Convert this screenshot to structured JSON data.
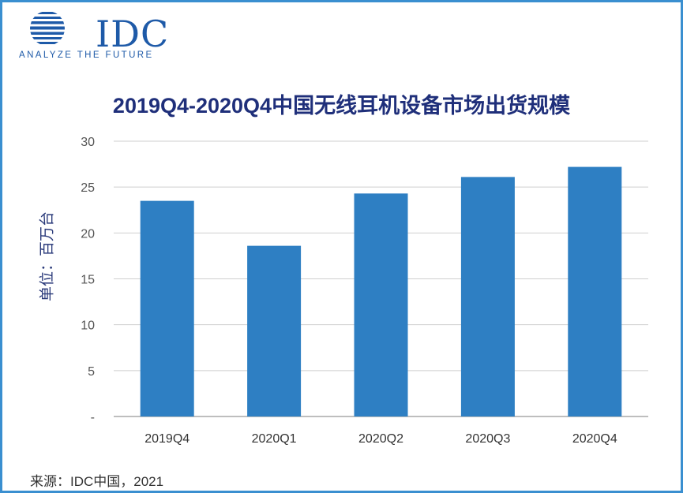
{
  "logo": {
    "text": "IDC",
    "tagline": "ANALYZE THE FUTURE"
  },
  "source": "来源：IDC中国，2021",
  "colors": {
    "bar": "#2e7fc3",
    "grid": "#cfcfcf",
    "title": "#1f2f7a",
    "frame": "#3a8fd0"
  },
  "chart_data": {
    "type": "bar",
    "title": "2019Q4-2020Q4中国无线耳机设备市场出货规模",
    "ylabel": "单位：百万台",
    "xlabel": "",
    "categories": [
      "2019Q4",
      "2020Q1",
      "2020Q2",
      "2020Q3",
      "2020Q4"
    ],
    "values": [
      23.5,
      18.6,
      24.3,
      26.1,
      27.2
    ],
    "ylim": [
      0,
      30
    ],
    "yticks": [
      0,
      5,
      10,
      15,
      20,
      25,
      30
    ],
    "ytick_labels": [
      "-",
      "5",
      "10",
      "15",
      "20",
      "25",
      "30"
    ],
    "grid": true,
    "legend": "none"
  }
}
